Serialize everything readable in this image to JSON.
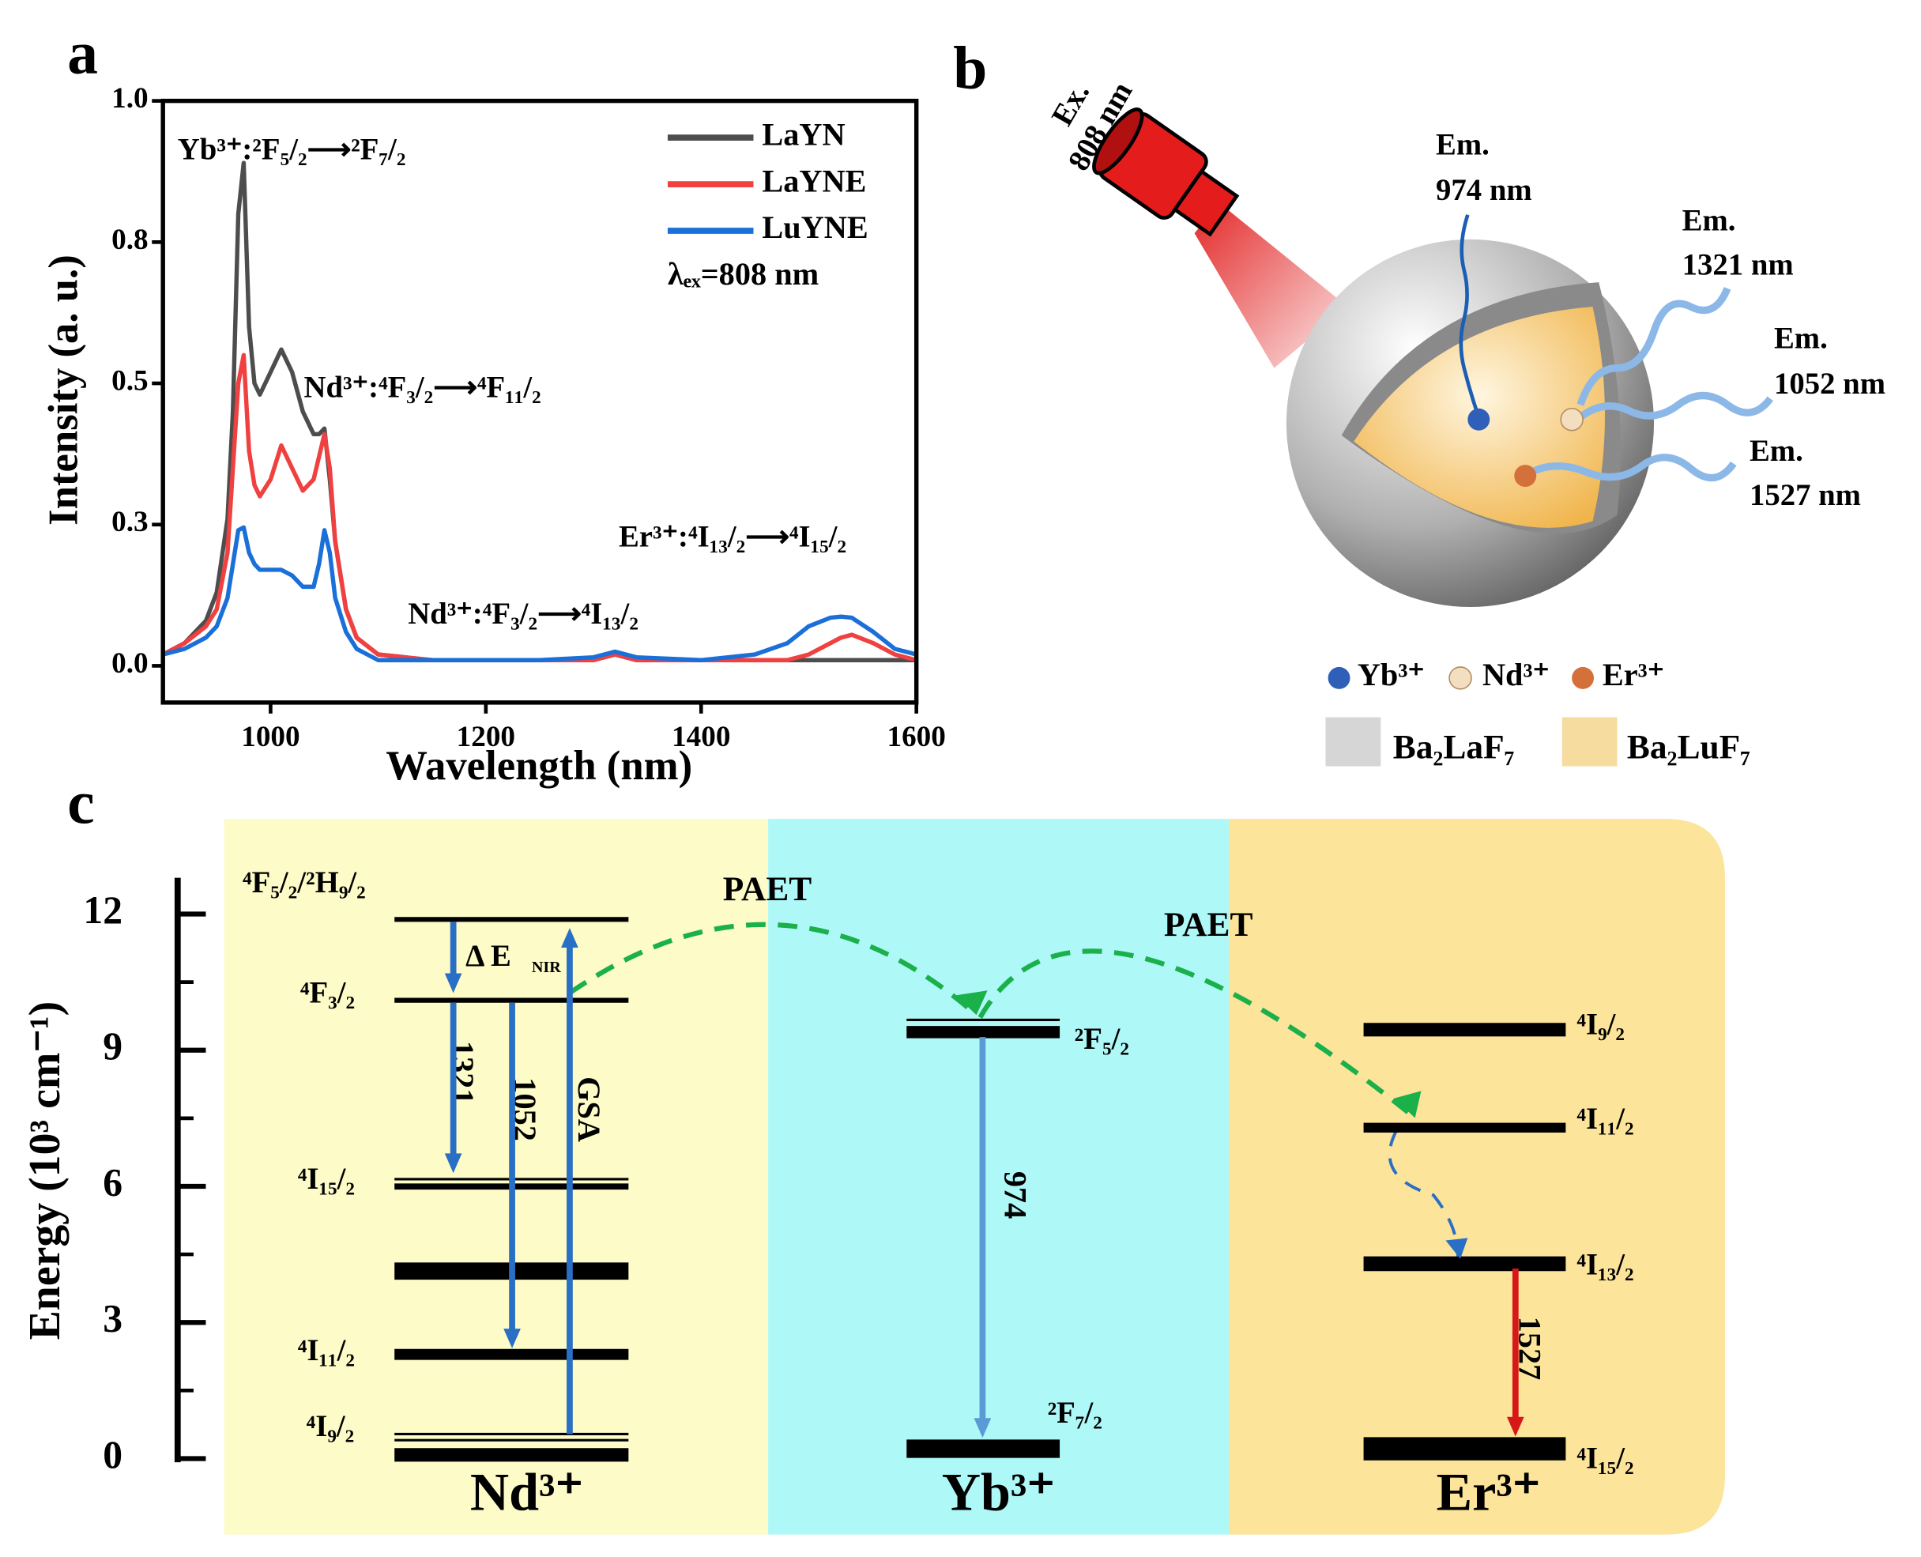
{
  "panel_labels": [
    "a",
    "b",
    "c"
  ],
  "chart_data": {
    "type": "line",
    "xlabel": "Wavelength (nm)",
    "ylabel": "Intensity (a. u.)",
    "x": [
      900,
      920,
      940,
      950,
      960,
      965,
      970,
      975,
      980,
      985,
      990,
      1000,
      1010,
      1020,
      1030,
      1040,
      1045,
      1050,
      1055,
      1060,
      1070,
      1080,
      1100,
      1150,
      1200,
      1250,
      1300,
      1320,
      1340,
      1400,
      1450,
      1480,
      1500,
      1520,
      1530,
      1540,
      1560,
      1580,
      1600
    ],
    "series": [
      {
        "name": "LaYN",
        "color": "#4d4d4d",
        "values": [
          0.02,
          0.04,
          0.08,
          0.13,
          0.26,
          0.45,
          0.8,
          0.89,
          0.6,
          0.5,
          0.48,
          0.52,
          0.56,
          0.52,
          0.45,
          0.41,
          0.41,
          0.42,
          0.33,
          0.22,
          0.1,
          0.05,
          0.02,
          0.01,
          0.01,
          0.01,
          0.01,
          0.02,
          0.01,
          0.01,
          0.01,
          0.01,
          0.01,
          0.01,
          0.01,
          0.01,
          0.01,
          0.01,
          0.01
        ]
      },
      {
        "name": "LaYNE",
        "color": "#f04040",
        "values": [
          0.02,
          0.04,
          0.07,
          0.1,
          0.2,
          0.35,
          0.5,
          0.55,
          0.38,
          0.32,
          0.3,
          0.33,
          0.39,
          0.35,
          0.31,
          0.33,
          0.37,
          0.41,
          0.35,
          0.22,
          0.1,
          0.05,
          0.02,
          0.01,
          0.01,
          0.01,
          0.01,
          0.02,
          0.01,
          0.01,
          0.01,
          0.01,
          0.02,
          0.04,
          0.05,
          0.055,
          0.04,
          0.02,
          0.01
        ]
      },
      {
        "name": "LuYNE",
        "color": "#1a6fd8",
        "values": [
          0.02,
          0.03,
          0.05,
          0.07,
          0.12,
          0.18,
          0.24,
          0.245,
          0.2,
          0.18,
          0.17,
          0.17,
          0.17,
          0.16,
          0.14,
          0.14,
          0.18,
          0.24,
          0.2,
          0.12,
          0.06,
          0.03,
          0.01,
          0.01,
          0.01,
          0.01,
          0.015,
          0.025,
          0.015,
          0.01,
          0.02,
          0.04,
          0.07,
          0.085,
          0.087,
          0.085,
          0.06,
          0.03,
          0.02
        ]
      }
    ],
    "xlim": [
      900,
      1600
    ],
    "ylim": [
      -0.065,
      1.0
    ],
    "xticks": [
      1000,
      1200,
      1400,
      1600
    ],
    "yticks": [
      {
        "value": 0,
        "label": "0.0"
      },
      {
        "value": 0.25,
        "label": "0.3"
      },
      {
        "value": 0.5,
        "label": "0.5"
      },
      {
        "value": 0.75,
        "label": "0.8"
      },
      {
        "value": 1,
        "label": "1.0"
      }
    ],
    "legend": "upper right",
    "excitation": "λₑₓ=808 nm",
    "annotations": [
      "Yb³⁺:²F₅/₂⟶²F₇/₂",
      "Nd³⁺:⁴F₃/₂⟶⁴F₁₁/₂",
      "Nd³⁺:⁴F₃/₂⟶⁴I₁₃/₂",
      "Er³⁺:⁴I₁₃/₂⟶⁴I₁₅/₂"
    ]
  },
  "panel_b": {
    "excitation": [
      "Ex.",
      "808 nm"
    ],
    "emissions": [
      [
        "Em.",
        "974 nm"
      ],
      [
        "Em.",
        "1321 nm"
      ],
      [
        "Em.",
        "1052 nm"
      ],
      [
        "Em.",
        "1527 nm"
      ]
    ],
    "ions": [
      "Yb³⁺",
      "Nd³⁺",
      "Er³⁺"
    ],
    "materials": [
      "Ba₂LaF₇",
      "Ba₂LuF₇"
    ]
  },
  "panel_c": {
    "axis_label": "Energy (10³ cm⁻¹)",
    "ticks": [
      0,
      3,
      6,
      9,
      12
    ],
    "lim": [
      0,
      12.8
    ],
    "ions": [
      "Nd³⁺",
      "Yb³⁺",
      "Er³⁺"
    ],
    "nd_levels": [
      "⁴F₅/₂/²H₉/₂",
      "⁴F₃/₂",
      "⁴I₁₅/₂",
      "⁴I₁₁/₂",
      "⁴I₉/₂"
    ],
    "yb_levels": [
      "²F₅/₂",
      "²F₇/₂"
    ],
    "er_levels": [
      "⁴I₉/₂",
      "⁴I₁₁/₂",
      "⁴I₁₃/₂",
      "⁴I₁₅/₂"
    ],
    "transitions": [
      "1321",
      "1052",
      "GSA",
      "974",
      "1527"
    ],
    "delta": [
      "Δ E",
      "NIR"
    ],
    "paet": [
      "PAET",
      "PAET"
    ]
  }
}
